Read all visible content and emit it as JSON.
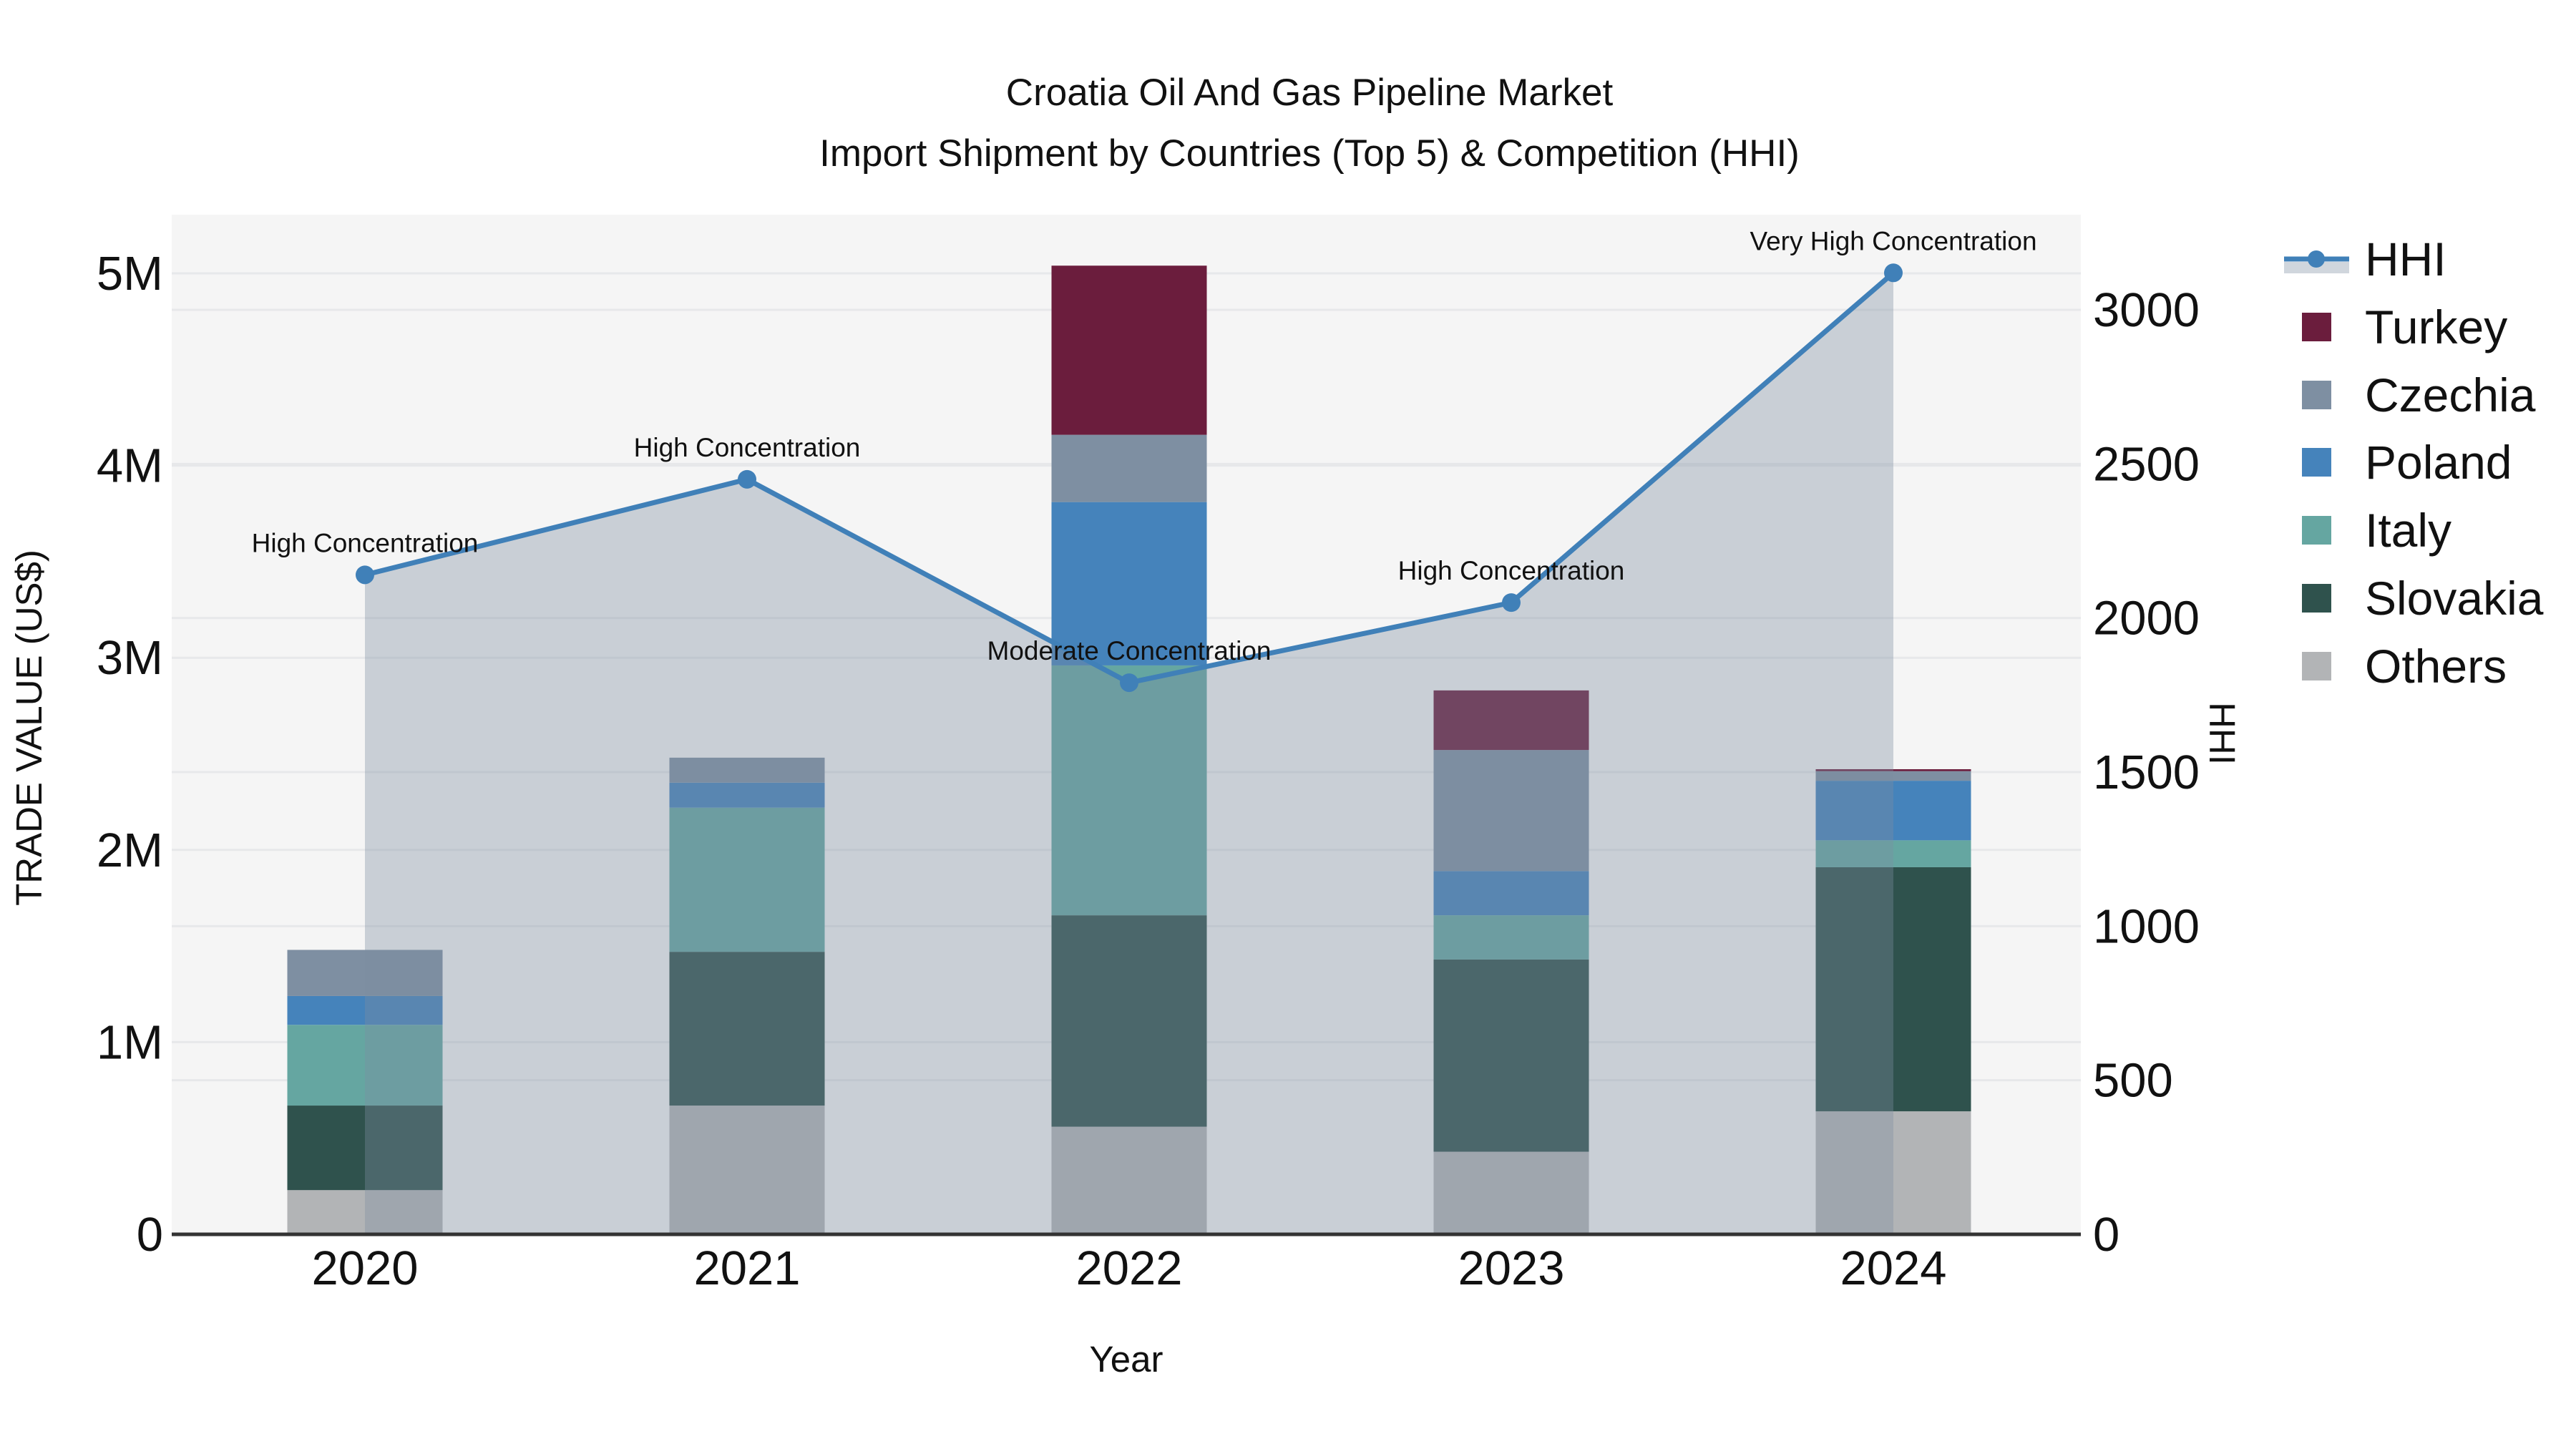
{
  "title": {
    "line1": "Croatia Oil And Gas Pipeline Market",
    "line2": "Import Shipment by Countries (Top 5) & Competition (HHI)"
  },
  "chart_data": {
    "type": "combo: stacked-bar (left axis) + line-area (right axis)",
    "categories": [
      "2020",
      "2021",
      "2022",
      "2023",
      "2024"
    ],
    "bar_unit": "USD millions",
    "bar_series_bottom_to_top": [
      {
        "name": "Others",
        "color": "#b2b4b6",
        "values": [
          0.23,
          0.67,
          0.56,
          0.43,
          0.64
        ]
      },
      {
        "name": "Slovakia",
        "color": "#2f524d",
        "values": [
          0.44,
          0.8,
          1.1,
          1.0,
          1.27
        ]
      },
      {
        "name": "Italy",
        "color": "#65a6a1",
        "values": [
          0.42,
          0.75,
          1.3,
          0.23,
          0.14
        ]
      },
      {
        "name": "Poland",
        "color": "#4583bb",
        "values": [
          0.15,
          0.13,
          0.85,
          0.23,
          0.31
        ]
      },
      {
        "name": "Czechia",
        "color": "#7e8fa2",
        "values": [
          0.24,
          0.13,
          0.35,
          0.63,
          0.05
        ]
      },
      {
        "name": "Turkey",
        "color": "#6b1d3d",
        "values": [
          0.0,
          0.0,
          0.88,
          0.31,
          0.01
        ]
      }
    ],
    "line_series": {
      "name": "HHI",
      "color": "#4080b8",
      "area_color": "rgba(125,140,160,0.36)",
      "values": [
        2140,
        2450,
        1790,
        2050,
        3120
      ],
      "annotations": [
        "High Concentration",
        "High Concentration",
        "Moderate Concentration",
        "High Concentration",
        "Very High Concentration"
      ]
    },
    "left_axis": {
      "label": "TRADE VALUE (US$)",
      "ticks": [
        {
          "value": 0,
          "label": "0"
        },
        {
          "value": 1,
          "label": "1M"
        },
        {
          "value": 2,
          "label": "2M"
        },
        {
          "value": 3,
          "label": "3M"
        },
        {
          "value": 4,
          "label": "4M"
        },
        {
          "value": 5,
          "label": "5M"
        }
      ],
      "range": [
        0,
        5.3
      ]
    },
    "right_axis": {
      "label": "HHI",
      "ticks": [
        {
          "value": 0,
          "label": "0"
        },
        {
          "value": 500,
          "label": "500"
        },
        {
          "value": 1000,
          "label": "1000"
        },
        {
          "value": 1500,
          "label": "1500"
        },
        {
          "value": 2000,
          "label": "2000"
        },
        {
          "value": 2500,
          "label": "2500"
        },
        {
          "value": 3000,
          "label": "3000"
        }
      ],
      "range": [
        0,
        3310
      ]
    },
    "x_axis": {
      "label": "Year"
    },
    "legend_order": [
      "HHI",
      "Turkey",
      "Czechia",
      "Poland",
      "Italy",
      "Slovakia",
      "Others"
    ],
    "grid": true,
    "legend_position": "right"
  },
  "colors": {
    "plot_background": "#f5f5f5",
    "figure_background": "#ffffff",
    "gridline": "#e7e8ea",
    "axis_line": "#333333",
    "text": "#111111"
  }
}
